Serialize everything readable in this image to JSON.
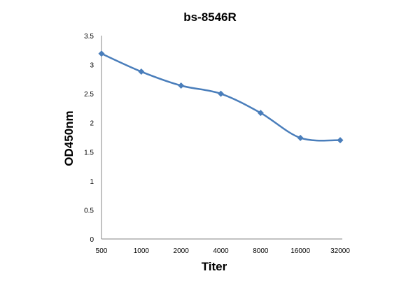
{
  "chart_data": {
    "type": "line",
    "title": "bs-8546R",
    "xlabel": "Titer",
    "ylabel": "OD450nm",
    "categories": [
      "500",
      "1000",
      "2000",
      "4000",
      "8000",
      "16000",
      "32000"
    ],
    "series": [
      {
        "name": "bs-8546R",
        "values": [
          3.19,
          2.88,
          2.64,
          2.5,
          2.17,
          1.74,
          1.7
        ],
        "color": "#4a7ebb"
      }
    ],
    "yticks": [
      "0",
      "0.5",
      "1",
      "1.5",
      "2",
      "2.5",
      "3",
      "3.5"
    ],
    "ylim": [
      0,
      3.5
    ],
    "grid": false,
    "legend": "none"
  }
}
